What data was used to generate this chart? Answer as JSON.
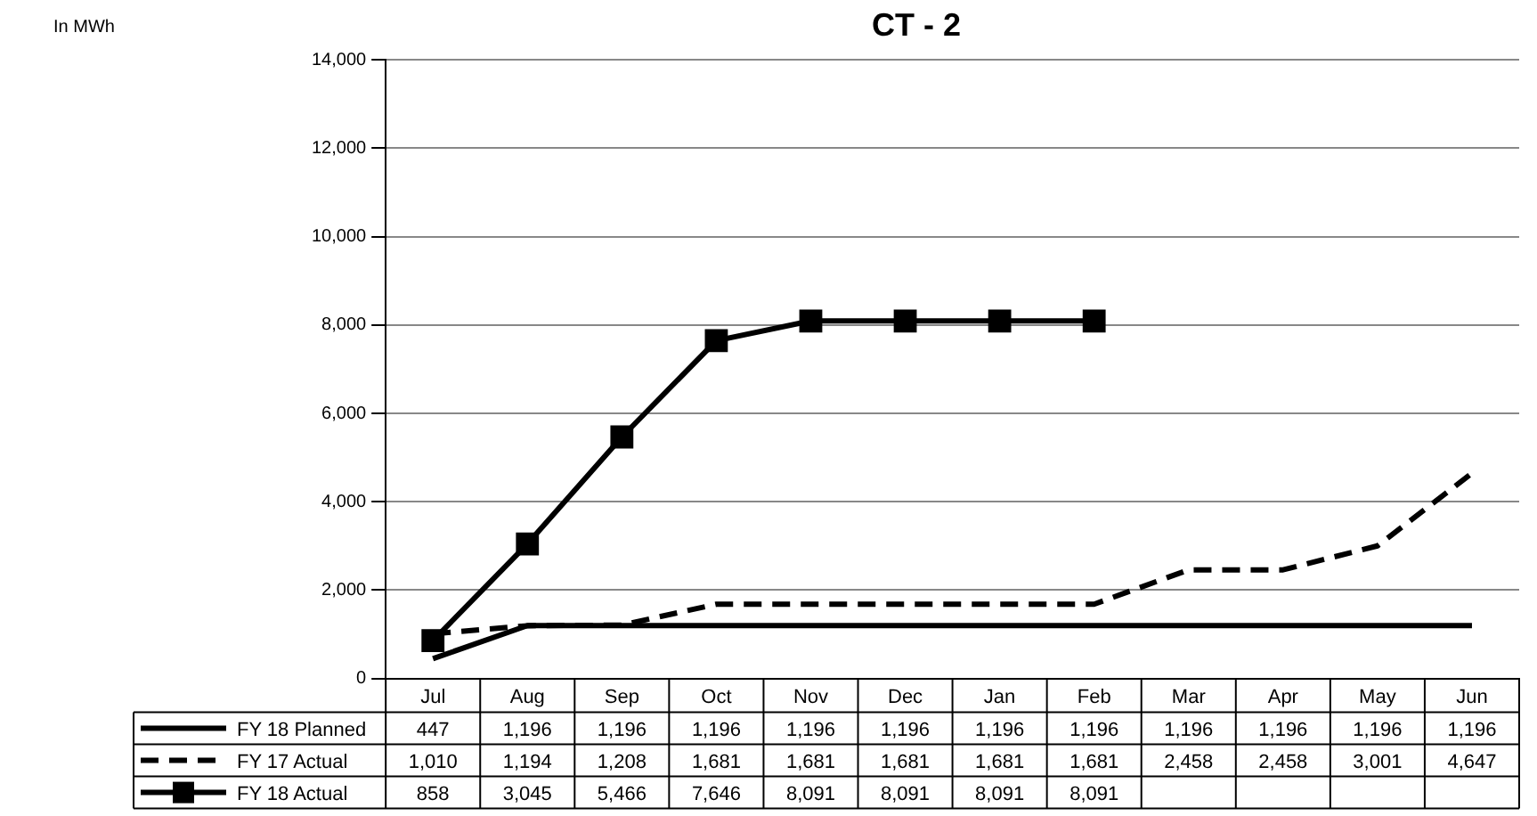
{
  "chart_data": {
    "type": "line",
    "title": "CT - 2",
    "annotations": [
      "In MWh"
    ],
    "categories": [
      "Jul",
      "Aug",
      "Sep",
      "Oct",
      "Nov",
      "Dec",
      "Jan",
      "Feb",
      "Mar",
      "Apr",
      "May",
      "Jun"
    ],
    "series": [
      {
        "name": "FY 18 Planned",
        "color": "#000000",
        "line_style": "solid",
        "marker": "none",
        "values": [
          447,
          1196,
          1196,
          1196,
          1196,
          1196,
          1196,
          1196,
          1196,
          1196,
          1196,
          1196
        ],
        "value_labels": [
          "447",
          "1,196",
          "1,196",
          "1,196",
          "1,196",
          "1,196",
          "1,196",
          "1,196",
          "1,196",
          "1,196",
          "1,196",
          "1,196"
        ]
      },
      {
        "name": "FY 17 Actual",
        "color": "#000000",
        "line_style": "dashed",
        "marker": "none",
        "values": [
          1010,
          1194,
          1208,
          1681,
          1681,
          1681,
          1681,
          1681,
          2458,
          2458,
          3001,
          4647
        ],
        "value_labels": [
          "1,010",
          "1,194",
          "1,208",
          "1,681",
          "1,681",
          "1,681",
          "1,681",
          "1,681",
          "2,458",
          "2,458",
          "3,001",
          "4,647"
        ]
      },
      {
        "name": "FY 18 Actual",
        "color": "#000000",
        "line_style": "solid",
        "marker": "square",
        "values": [
          858,
          3045,
          5466,
          7646,
          8091,
          8091,
          8091,
          8091,
          null,
          null,
          null,
          null
        ],
        "value_labels": [
          "858",
          "3,045",
          "5,466",
          "7,646",
          "8,091",
          "8,091",
          "8,091",
          "8,091",
          null,
          null,
          null,
          null
        ]
      }
    ],
    "ylim": [
      0,
      14000
    ],
    "yticks": [
      0,
      {
        "value": 2000,
        "label": "2,000"
      },
      {
        "value": 4000,
        "label": "4,000"
      },
      {
        "value": 6000,
        "label": "6,000"
      },
      {
        "value": 8000,
        "label": "8,000"
      },
      {
        "value": 10000,
        "label": "10,000"
      },
      {
        "value": 12000,
        "label": "12,000"
      },
      {
        "value": 14000,
        "label": "14,000"
      }
    ],
    "grid": "y",
    "legend": "bottom"
  }
}
